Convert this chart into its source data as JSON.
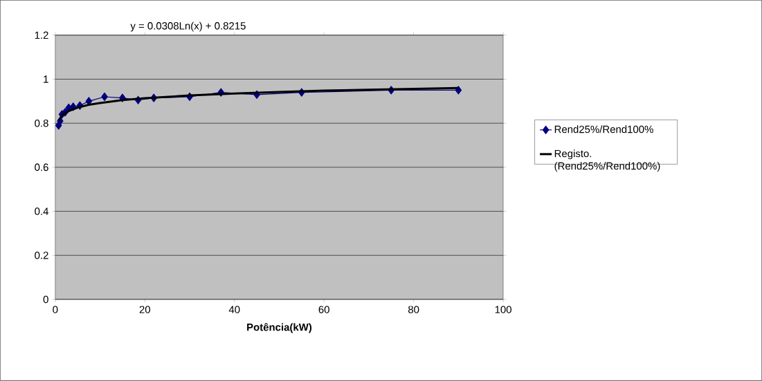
{
  "chart_data": {
    "type": "line",
    "xlabel": "Potência(kW)",
    "annotations": [
      "y = 0.0308Ln(x) + 0.8215"
    ],
    "x": [
      0.75,
      1.1,
      1.5,
      2.2,
      3,
      4,
      5.5,
      7.5,
      11,
      15,
      18.5,
      22,
      30,
      37,
      45,
      55,
      75,
      90
    ],
    "series": [
      {
        "name": "Rend25%/Rend100%",
        "color": "#000080",
        "marker": "diamond",
        "values": [
          0.79,
          0.81,
          0.84,
          0.85,
          0.87,
          0.875,
          0.88,
          0.9,
          0.92,
          0.915,
          0.905,
          0.915,
          0.92,
          0.94,
          0.93,
          0.94,
          0.95,
          0.95
        ]
      },
      {
        "name": "Registo. (Rend25%/Rend100%)",
        "color": "#000000",
        "type": "line",
        "marker": "none",
        "x": [
          0.75,
          1,
          1.5,
          2,
          3,
          5,
          7.5,
          10,
          15,
          20,
          30,
          40,
          50,
          60,
          70,
          80,
          90
        ],
        "values": [
          0.813,
          0.82,
          0.834,
          0.843,
          0.855,
          0.871,
          0.884,
          0.892,
          0.905,
          0.914,
          0.926,
          0.935,
          0.942,
          0.948,
          0.952,
          0.956,
          0.96
        ]
      }
    ],
    "xlim": [
      0,
      100
    ],
    "xticks": [
      0,
      20,
      40,
      60,
      80,
      100
    ],
    "ylim": [
      0,
      1.2
    ],
    "yticks": [
      0,
      0.2,
      0.4,
      0.6,
      0.8,
      1,
      1.2
    ],
    "grid": "y",
    "legend": "right",
    "line_style": "solid"
  }
}
